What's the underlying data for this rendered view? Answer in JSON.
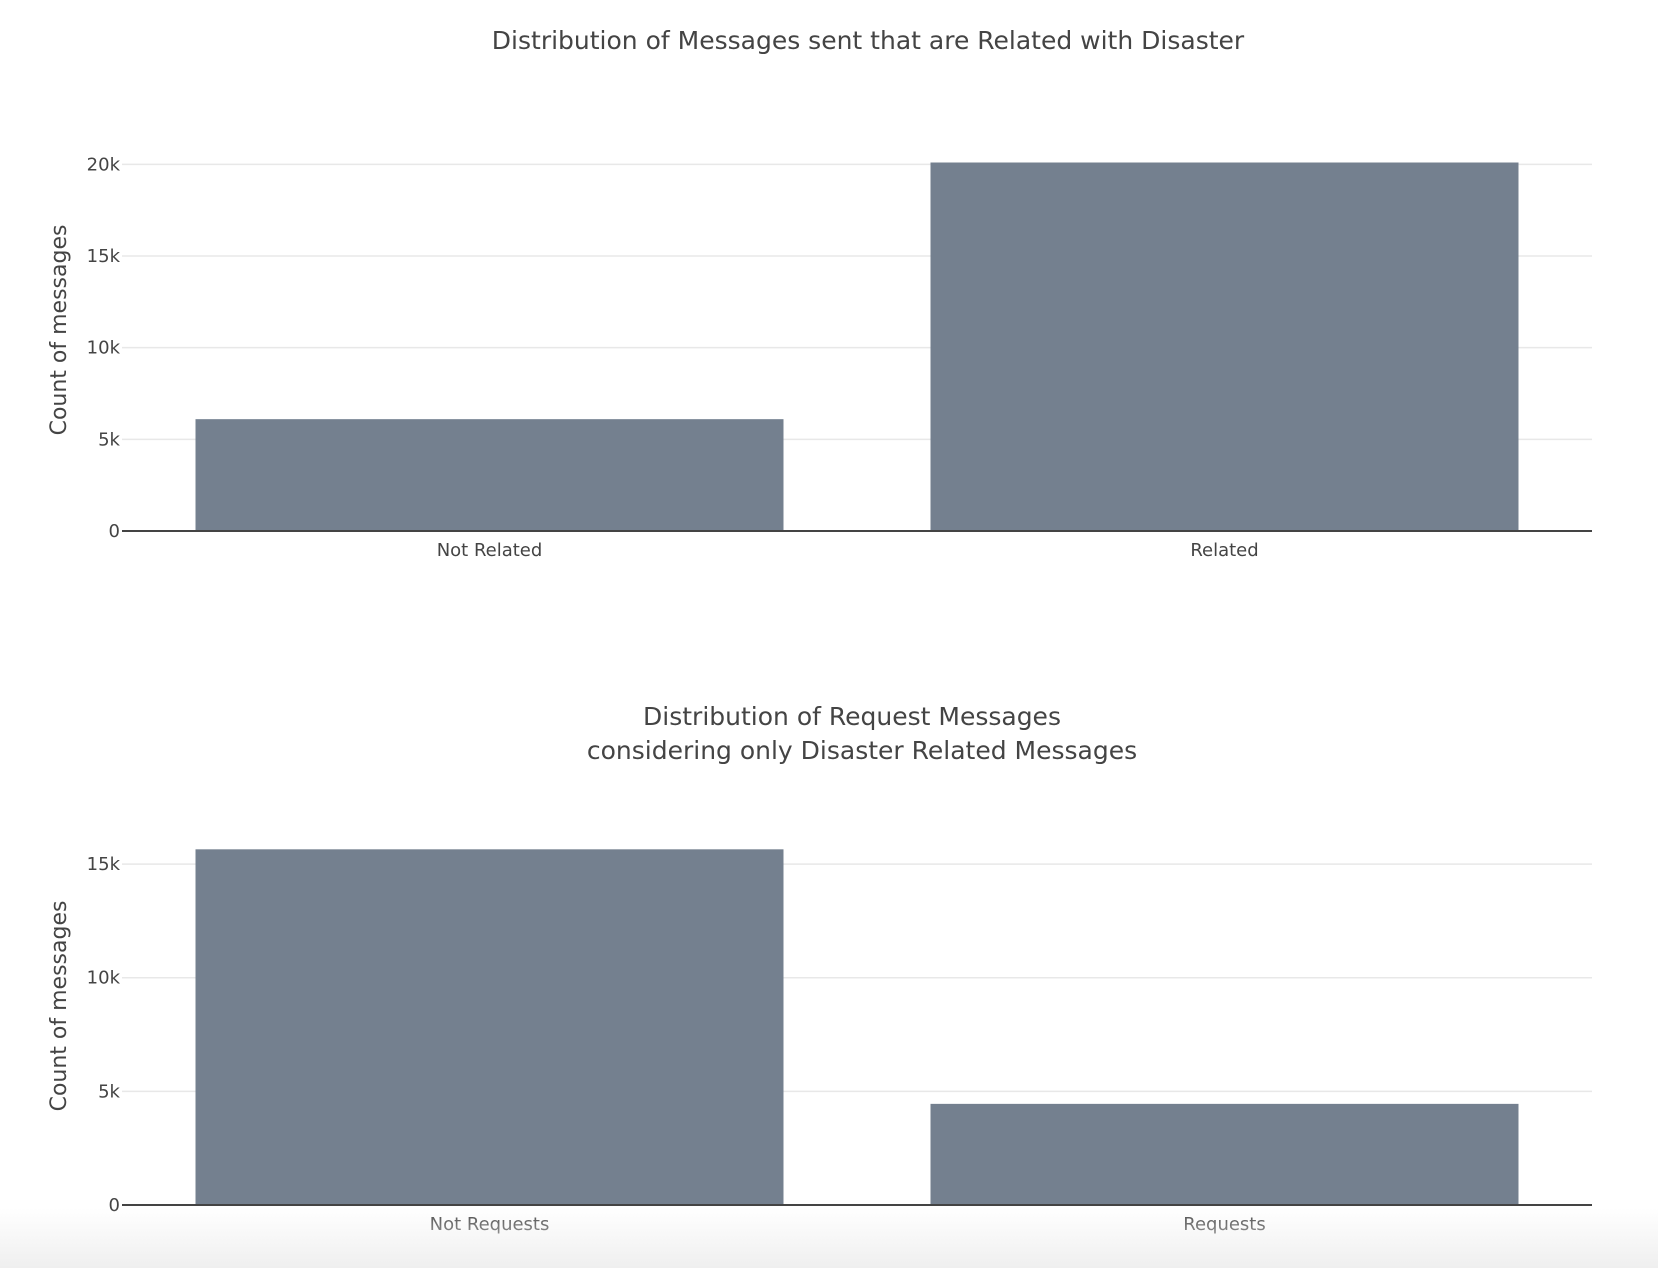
{
  "chart_data": [
    {
      "type": "bar",
      "title": "Distribution of Messages sent that are Related with Disaster",
      "categories": [
        "Not Related",
        "Related"
      ],
      "values": [
        6100,
        20100
      ],
      "xlabel": "",
      "ylabel": "Count of messages",
      "ylim": [
        0,
        21000
      ],
      "yticks": [
        0,
        5000,
        10000,
        15000,
        20000
      ],
      "ytick_labels": [
        "0",
        "5k",
        "10k",
        "15k",
        "20k"
      ],
      "grid": true,
      "bar_color": "#74808f"
    },
    {
      "type": "bar",
      "title_lines": [
        "Distribution of Request Messages",
        "considering only Disaster Related Messages"
      ],
      "categories": [
        "Not Requests",
        "Requests"
      ],
      "values": [
        15650,
        4450
      ],
      "xlabel": "",
      "ylabel": "Count of messages",
      "ylim": [
        0,
        16500
      ],
      "yticks": [
        0,
        5000,
        10000,
        15000
      ],
      "ytick_labels": [
        "0",
        "5k",
        "10k",
        "15k"
      ],
      "grid": true,
      "bar_color": "#74808f"
    }
  ]
}
